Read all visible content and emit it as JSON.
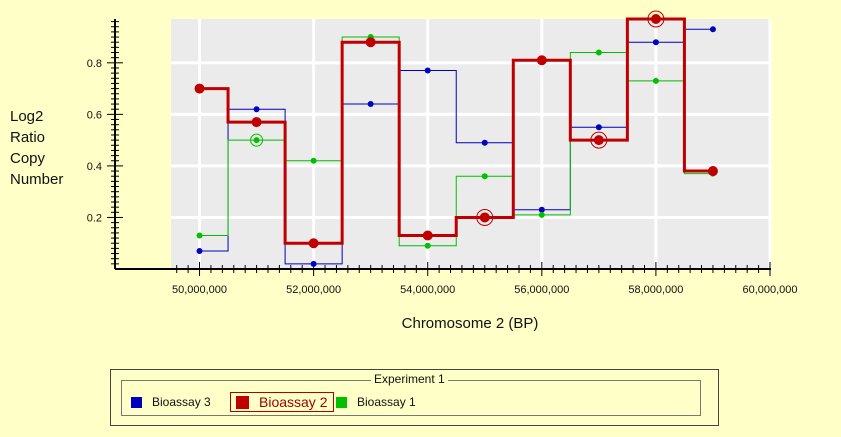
{
  "chart_data": {
    "type": "line",
    "title": "",
    "xlabel": "Chromosome 2 (BP)",
    "ylabel_lines": [
      "Log2",
      "Ratio",
      "Copy",
      "Number"
    ],
    "xlim": [
      49500000,
      60000000
    ],
    "ylim": [
      0,
      0.97
    ],
    "x_ticks": [
      50000000,
      52000000,
      54000000,
      56000000,
      58000000,
      60000000
    ],
    "x_tick_labels": [
      "50,000,000",
      "52,000,000",
      "54,000,000",
      "56,000,000",
      "58,000,000",
      "60,000,000"
    ],
    "y_ticks": [
      0.2,
      0.4,
      0.6,
      0.8
    ],
    "y_tick_labels": [
      "0.2",
      "0.4",
      "0.6",
      "0.8"
    ],
    "grid": true,
    "step_style": "step-centered",
    "x": [
      50000000,
      51000000,
      52000000,
      53000000,
      54000000,
      55000000,
      56000000,
      57000000,
      58000000,
      59000000
    ],
    "series": [
      {
        "name": "Bioassay 3",
        "color": "#0000c0",
        "values": [
          0.07,
          0.62,
          0.02,
          0.64,
          0.77,
          0.49,
          0.23,
          0.55,
          0.88,
          0.93
        ],
        "emphasized": false
      },
      {
        "name": "Bioassay 1",
        "color": "#00c000",
        "values": [
          0.13,
          0.5,
          0.42,
          0.9,
          0.09,
          0.36,
          0.21,
          0.84,
          0.73,
          0.37
        ],
        "emphasized": false,
        "circled_points": [
          1
        ]
      },
      {
        "name": "Bioassay 2",
        "color": "#c00000",
        "values": [
          0.7,
          0.57,
          0.1,
          0.88,
          0.13,
          0.2,
          0.81,
          0.5,
          0.97,
          0.38
        ],
        "emphasized": true,
        "circled_points": [
          5,
          7,
          8
        ]
      }
    ]
  },
  "legend": {
    "title": "Experiment 1",
    "placement": "bottom",
    "items": [
      {
        "label": "Bioassay 3",
        "color": "#0000c0",
        "selected": false
      },
      {
        "label": "Bioassay 2",
        "color": "#c00000",
        "selected": true
      },
      {
        "label": "Bioassay 1",
        "color": "#00c000",
        "selected": false
      }
    ]
  },
  "colors": {
    "page_background": "#ffffc8",
    "plot_background": "#ebebeb",
    "grid": "#ffffff"
  }
}
